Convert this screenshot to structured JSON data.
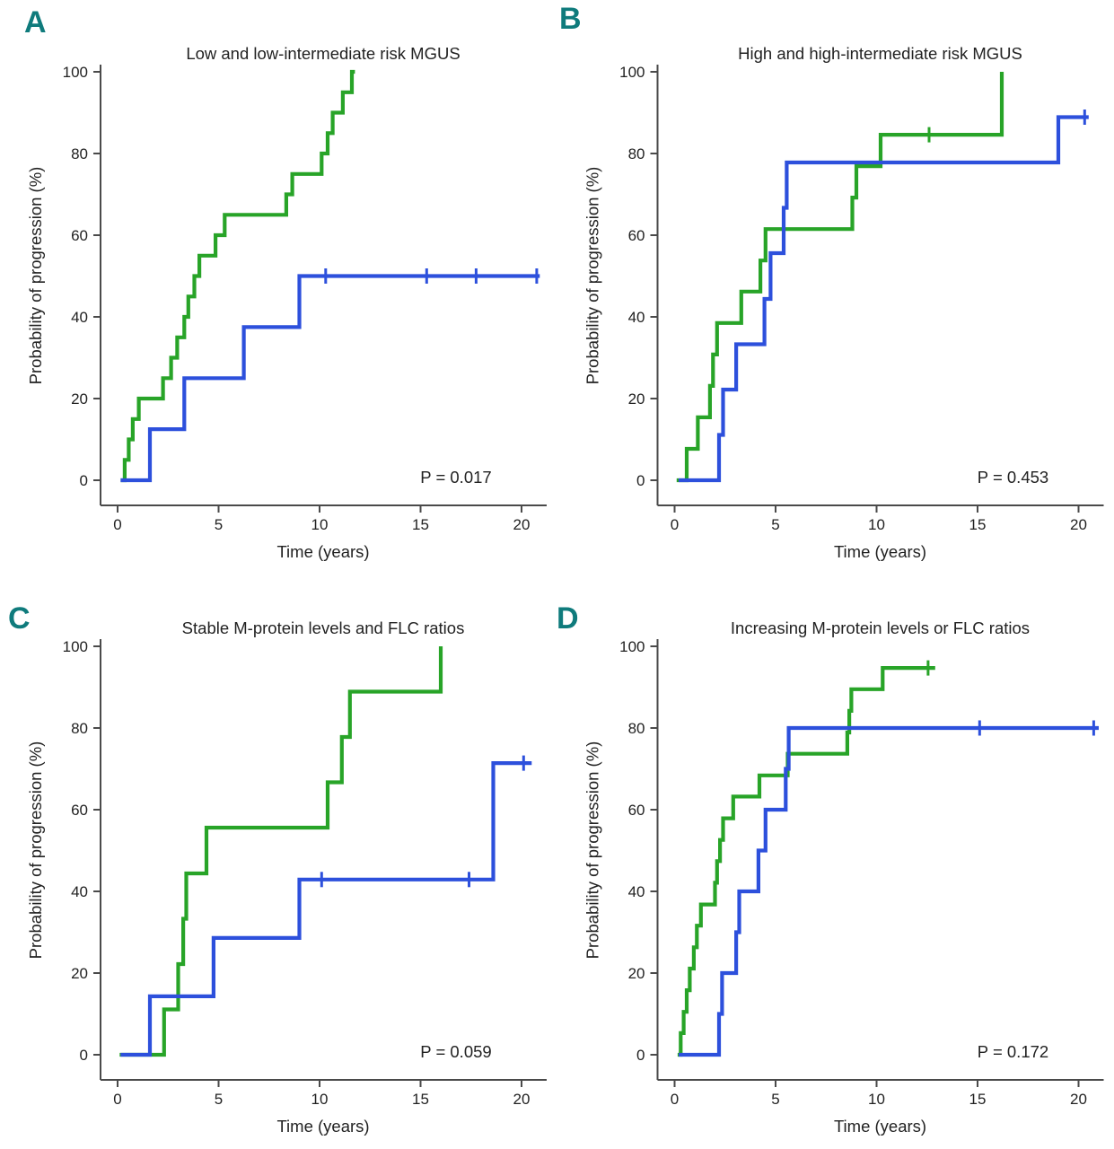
{
  "figure": {
    "description": "Four-panel Kaplan-Meier style plot of probability of progression over time",
    "colors": {
      "green_series": "#28A428",
      "blue_series": "#2D50DC",
      "panel_letter": "#0F7B7C",
      "axis": "#4a4a4a",
      "text": "#222222"
    }
  },
  "panels_common": {
    "xlabel": "Time (years)",
    "ylabel": "Probability of progression (%)",
    "xticks": [
      0,
      5,
      10,
      15,
      20
    ],
    "yticks": [
      0,
      20,
      40,
      60,
      80,
      100
    ],
    "xlim": [
      0,
      21.5
    ],
    "ylim": [
      0,
      100
    ]
  },
  "chart_data": [
    {
      "type": "line",
      "subtype": "kaplan-meier-step",
      "panel_label": "A",
      "title": "Low and low-intermediate risk MGUS",
      "p_value_label": "P = 0.017",
      "series": [
        {
          "name": "green-group",
          "color_key": "green_series",
          "start": 0.15,
          "steps": [
            [
              0.35,
              5
            ],
            [
              0.55,
              10
            ],
            [
              0.75,
              15
            ],
            [
              1.05,
              20
            ],
            [
              2.25,
              25
            ],
            [
              2.65,
              30
            ],
            [
              2.95,
              35
            ],
            [
              3.3,
              40
            ],
            [
              3.5,
              45
            ],
            [
              3.8,
              50
            ],
            [
              4.05,
              55
            ],
            [
              4.85,
              60
            ],
            [
              5.3,
              65
            ],
            [
              8.35,
              70
            ],
            [
              8.65,
              75
            ],
            [
              10.1,
              80
            ],
            [
              10.4,
              85
            ],
            [
              10.65,
              90
            ],
            [
              11.15,
              95
            ],
            [
              11.6,
              100
            ]
          ],
          "end": 11.75,
          "censors": []
        },
        {
          "name": "blue-group",
          "color_key": "blue_series",
          "start": 0.15,
          "steps": [
            [
              1.6,
              12.5
            ],
            [
              3.3,
              25
            ],
            [
              6.25,
              37.5
            ],
            [
              9.0,
              50
            ]
          ],
          "end": 20.9,
          "censors": [
            [
              10.3,
              50
            ],
            [
              15.3,
              50
            ],
            [
              17.75,
              50
            ],
            [
              20.75,
              50
            ]
          ]
        }
      ]
    },
    {
      "type": "line",
      "subtype": "kaplan-meier-step",
      "panel_label": "B",
      "title": "High and high-intermediate risk MGUS",
      "p_value_label": "P = 0.453",
      "series": [
        {
          "name": "green-group",
          "color_key": "green_series",
          "start": 0.1,
          "steps": [
            [
              0.6,
              7.7
            ],
            [
              1.15,
              15.4
            ],
            [
              1.75,
              23.1
            ],
            [
              1.9,
              30.8
            ],
            [
              2.1,
              38.5
            ],
            [
              3.3,
              46.2
            ],
            [
              4.25,
              53.8
            ],
            [
              4.5,
              61.5
            ],
            [
              8.8,
              69.2
            ],
            [
              9.0,
              76.9
            ],
            [
              10.2,
              84.6
            ],
            [
              16.2,
              100
            ]
          ],
          "end": 16.2,
          "censors": [
            [
              12.6,
              84.6
            ]
          ]
        },
        {
          "name": "blue-group",
          "color_key": "blue_series",
          "start": 0.2,
          "steps": [
            [
              2.2,
              11.1
            ],
            [
              2.4,
              22.2
            ],
            [
              3.05,
              33.3
            ],
            [
              4.45,
              44.4
            ],
            [
              4.75,
              55.6
            ],
            [
              5.4,
              66.7
            ],
            [
              5.55,
              77.8
            ],
            [
              19.0,
              88.9
            ]
          ],
          "end": 20.5,
          "censors": [
            [
              20.3,
              88.9
            ]
          ]
        }
      ]
    },
    {
      "type": "line",
      "subtype": "kaplan-meier-step",
      "panel_label": "C",
      "title": "Stable M-protein levels and FLC ratios",
      "p_value_label": "P = 0.059",
      "series": [
        {
          "name": "green-group",
          "color_key": "green_series",
          "start": 0.1,
          "steps": [
            [
              2.3,
              11.1
            ],
            [
              3.0,
              22.2
            ],
            [
              3.25,
              33.3
            ],
            [
              3.4,
              44.4
            ],
            [
              4.4,
              55.6
            ],
            [
              10.4,
              66.7
            ],
            [
              11.1,
              77.8
            ],
            [
              11.5,
              88.9
            ],
            [
              16.0,
              100
            ]
          ],
          "end": 16.0,
          "censors": []
        },
        {
          "name": "blue-group",
          "color_key": "blue_series",
          "start": 0.15,
          "steps": [
            [
              1.6,
              14.3
            ],
            [
              4.75,
              28.6
            ],
            [
              9.0,
              42.9
            ],
            [
              18.6,
              71.4
            ]
          ],
          "end": 20.5,
          "censors": [
            [
              10.1,
              42.9
            ],
            [
              17.4,
              42.9
            ],
            [
              20.1,
              71.4
            ]
          ]
        }
      ]
    },
    {
      "type": "line",
      "subtype": "kaplan-meier-step",
      "panel_label": "D",
      "title": "Increasing M-protein levels or FLC ratios",
      "p_value_label": "P = 0.172",
      "series": [
        {
          "name": "green-group",
          "color_key": "green_series",
          "start": 0.15,
          "steps": [
            [
              0.3,
              5.3
            ],
            [
              0.45,
              10.5
            ],
            [
              0.6,
              15.8
            ],
            [
              0.75,
              21.1
            ],
            [
              0.95,
              26.3
            ],
            [
              1.1,
              31.6
            ],
            [
              1.3,
              36.8
            ],
            [
              2.0,
              42.1
            ],
            [
              2.1,
              47.4
            ],
            [
              2.25,
              52.6
            ],
            [
              2.4,
              57.9
            ],
            [
              2.9,
              63.2
            ],
            [
              4.2,
              68.4
            ],
            [
              5.6,
              73.7
            ],
            [
              8.55,
              78.9
            ],
            [
              8.65,
              84.2
            ],
            [
              8.75,
              89.5
            ],
            [
              10.3,
              94.7
            ]
          ],
          "end": 12.9,
          "censors": [
            [
              12.55,
              94.7
            ]
          ]
        },
        {
          "name": "blue-group",
          "color_key": "blue_series",
          "start": 0.2,
          "steps": [
            [
              2.2,
              10
            ],
            [
              2.35,
              20
            ],
            [
              3.05,
              30
            ],
            [
              3.2,
              40
            ],
            [
              4.15,
              50
            ],
            [
              4.5,
              60
            ],
            [
              5.5,
              70
            ],
            [
              5.65,
              80
            ]
          ],
          "end": 21.0,
          "censors": [
            [
              15.1,
              80
            ],
            [
              20.75,
              80
            ]
          ]
        }
      ]
    }
  ]
}
